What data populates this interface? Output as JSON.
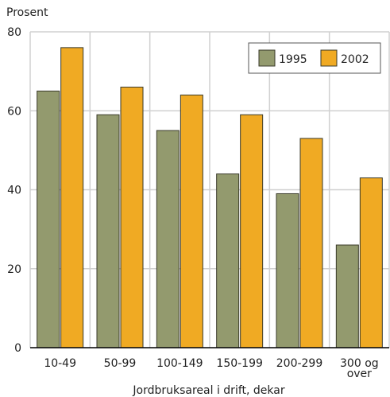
{
  "chart_data": {
    "type": "bar",
    "ylabel": "Prosent",
    "xlabel": "Jordbruksareal i drift, dekar",
    "ylim": [
      0,
      80
    ],
    "yticks": [
      0,
      20,
      40,
      60,
      80
    ],
    "categories": [
      [
        "10-49"
      ],
      [
        "50-99"
      ],
      [
        "100-149"
      ],
      [
        "150-199"
      ],
      [
        "200-299"
      ],
      [
        "300 og",
        "over"
      ]
    ],
    "series": [
      {
        "name": "1995",
        "values": [
          65,
          59,
          55,
          44,
          39,
          26
        ],
        "color": "#939a6e"
      },
      {
        "name": "2002",
        "values": [
          76,
          66,
          64,
          59,
          53,
          43
        ],
        "color": "#f0aa23"
      }
    ],
    "grid": true,
    "legend_position": "top-right"
  }
}
